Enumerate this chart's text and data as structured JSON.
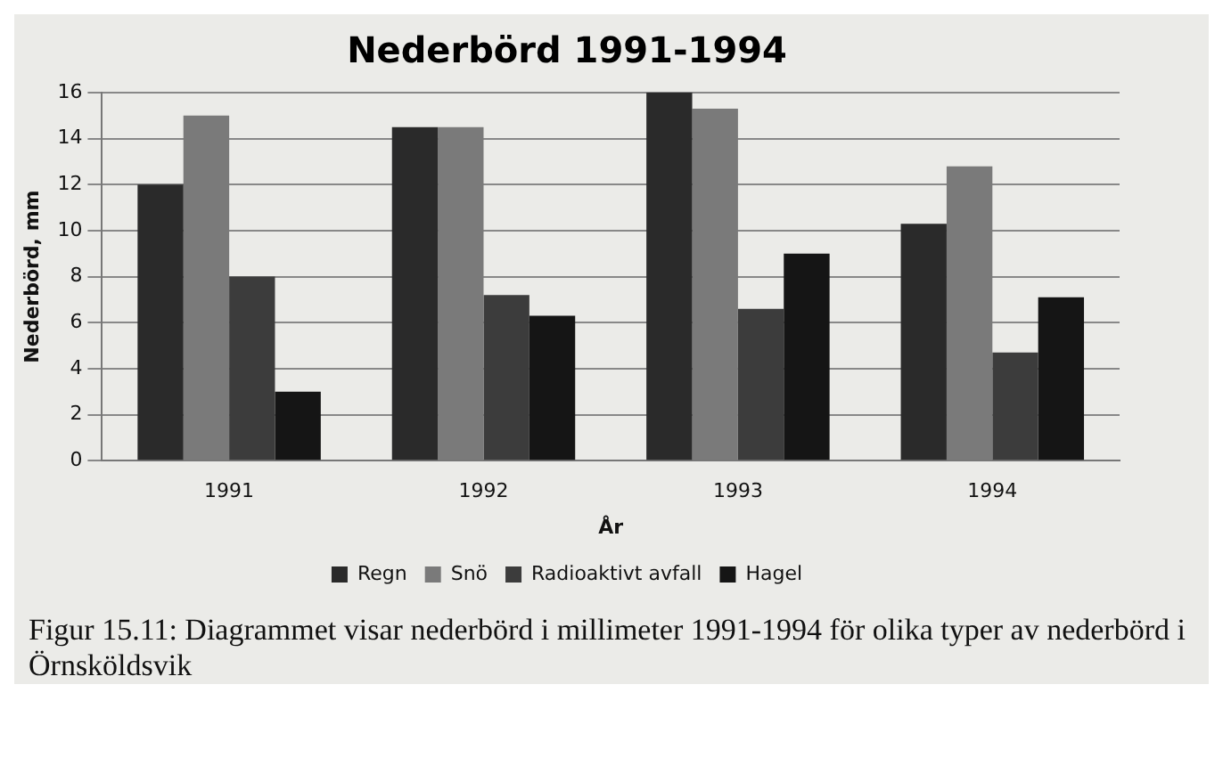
{
  "chart_data": {
    "type": "bar",
    "title": "Nederbörd 1991-1994",
    "xlabel": "År",
    "ylabel": "Nederbörd, mm",
    "categories": [
      "1991",
      "1992",
      "1993",
      "1994"
    ],
    "series": [
      {
        "name": "Regn",
        "color": "#2a2a2a",
        "values": [
          12,
          14.5,
          16,
          10.3
        ]
      },
      {
        "name": "Snö",
        "color": "#7a7a7a",
        "values": [
          15,
          14.5,
          15.3,
          12.8
        ]
      },
      {
        "name": "Radioaktivt avfall",
        "color": "#3c3c3c",
        "values": [
          8,
          7.2,
          6.6,
          4.7
        ]
      },
      {
        "name": "Hagel",
        "color": "#151515",
        "values": [
          3,
          6.3,
          9,
          7.1
        ]
      }
    ],
    "ylim": [
      0,
      16
    ],
    "yticks": [
      0,
      2,
      4,
      6,
      8,
      10,
      12,
      14,
      16
    ],
    "grid": "y",
    "legend": "bottom",
    "annotations": [
      "Figur 15.11: Diagrammet visar nederbörd i millimeter 1991-1994 för olika typer av nederbörd i Örnsköldsvik"
    ]
  }
}
